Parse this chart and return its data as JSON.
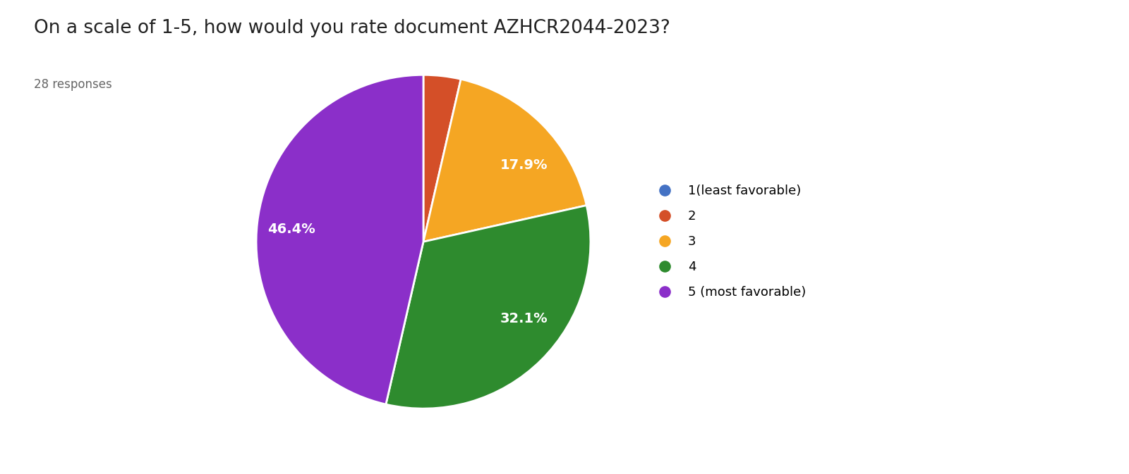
{
  "title": "On a scale of 1-5, how would you rate document AZHCR2044-2023?",
  "subtitle": "28 responses",
  "labels": [
    "1(least favorable)",
    "2",
    "3",
    "4",
    "5 (most favorable)"
  ],
  "values": [
    0.0,
    3.6,
    17.9,
    32.1,
    46.4
  ],
  "colors": [
    "#4472C4",
    "#D44F28",
    "#F5A623",
    "#2E8B2E",
    "#8B2FC9"
  ],
  "pct_display": [
    "",
    "",
    "17.9%",
    "32.1%",
    "46.4%"
  ],
  "title_fontsize": 19,
  "subtitle_fontsize": 12,
  "pct_fontsize": 14,
  "legend_fontsize": 13,
  "background_color": "#ffffff"
}
